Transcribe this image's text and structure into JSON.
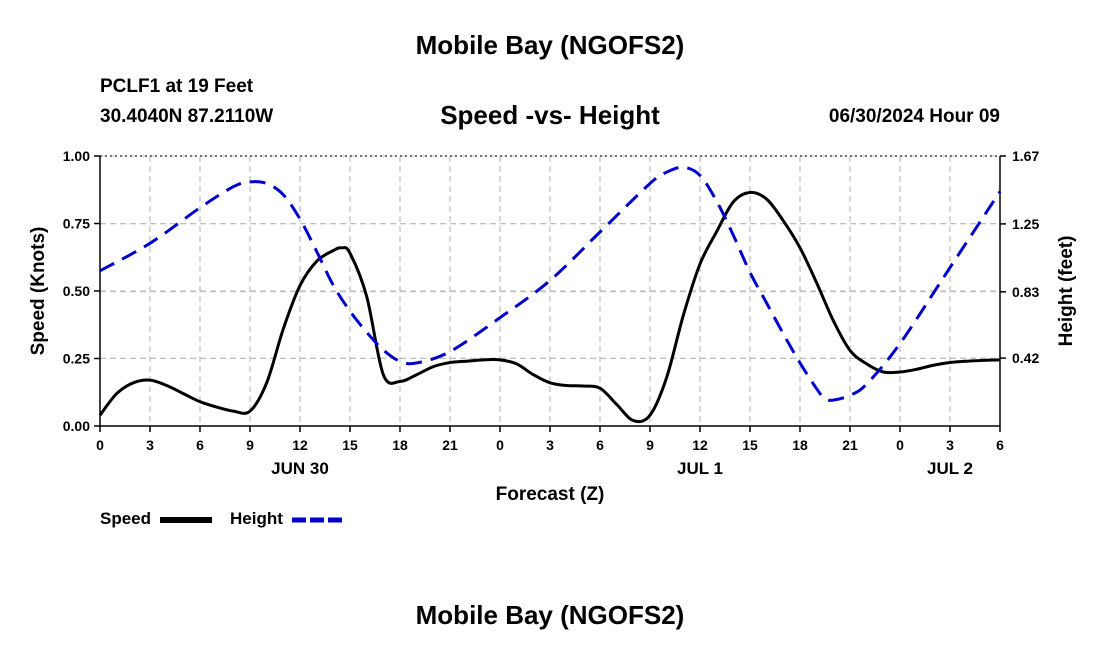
{
  "header": {
    "title": "Mobile Bay (NGOFS2)",
    "station": "PCLF1 at 19 Feet",
    "coordinates": "30.4040N  87.2110W",
    "subtitle": "Speed -vs- Height",
    "timestamp": "06/30/2024 Hour 09"
  },
  "footer": {
    "title": "Mobile Bay (NGOFS2)"
  },
  "legend": {
    "speed_label": "Speed",
    "height_label": "Height"
  },
  "chart_data": {
    "type": "line",
    "title": "Speed -vs- Height",
    "xlabel": "Forecast (Z)",
    "ylabel": "Speed (Knots)",
    "y2label": "Height (feet)",
    "x_unit": "hours since 2024-06-30 00Z",
    "xlim": [
      0,
      54
    ],
    "ylim": [
      0,
      1.0
    ],
    "y2lim": [
      0,
      1.67
    ],
    "x_ticks": [
      0,
      3,
      6,
      9,
      12,
      15,
      18,
      21,
      24,
      27,
      30,
      33,
      36,
      39,
      42,
      45,
      48,
      51,
      54
    ],
    "x_tick_labels": [
      "0",
      "3",
      "6",
      "9",
      "12",
      "15",
      "18",
      "21",
      "0",
      "3",
      "6",
      "9",
      "12",
      "15",
      "18",
      "21",
      "0",
      "3",
      "6"
    ],
    "date_labels": [
      {
        "x": 12,
        "label": "JUN 30"
      },
      {
        "x": 36,
        "label": "JUL 1"
      },
      {
        "x": 51,
        "label": "JUL 2"
      }
    ],
    "y_ticks": [
      0.0,
      0.25,
      0.5,
      0.75,
      1.0
    ],
    "y_tick_labels": [
      "0.00",
      "0.25",
      "0.50",
      "0.75",
      "1.00"
    ],
    "y2_ticks": [
      0.42,
      0.83,
      1.25,
      1.67
    ],
    "y2_tick_labels": [
      "0.42",
      "0.83",
      "1.25",
      "1.67"
    ],
    "grid": true,
    "series": [
      {
        "name": "Speed",
        "axis": "left",
        "color": "#000000",
        "style": "solid",
        "x": [
          0,
          1,
          2,
          3,
          4,
          5,
          6,
          7,
          8,
          9,
          10,
          11,
          12,
          13,
          14,
          14.5,
          15,
          16,
          17,
          18,
          19,
          20,
          21,
          22,
          23,
          24,
          25,
          26,
          27,
          28,
          29,
          30,
          31,
          32,
          33,
          34,
          35,
          36,
          37,
          38,
          39,
          40,
          41,
          42,
          43,
          44,
          45,
          46,
          47,
          48,
          49,
          50,
          51,
          52,
          53,
          54
        ],
        "values": [
          0.04,
          0.12,
          0.16,
          0.17,
          0.15,
          0.12,
          0.09,
          0.07,
          0.055,
          0.055,
          0.16,
          0.36,
          0.52,
          0.61,
          0.65,
          0.66,
          0.64,
          0.48,
          0.19,
          0.165,
          0.19,
          0.22,
          0.235,
          0.24,
          0.245,
          0.245,
          0.23,
          0.19,
          0.16,
          0.15,
          0.148,
          0.14,
          0.08,
          0.02,
          0.04,
          0.18,
          0.41,
          0.6,
          0.72,
          0.83,
          0.865,
          0.84,
          0.76,
          0.66,
          0.53,
          0.39,
          0.28,
          0.23,
          0.2,
          0.2,
          0.21,
          0.225,
          0.235,
          0.24,
          0.243,
          0.245
        ]
      },
      {
        "name": "Height",
        "axis": "right",
        "color": "#0000cc",
        "style": "dashed",
        "x": [
          0,
          3,
          6,
          8,
          9,
          10,
          11,
          12,
          13,
          14,
          15,
          16,
          17,
          18,
          19,
          21,
          24,
          27,
          30,
          33,
          34,
          35,
          36,
          37,
          38,
          39,
          40,
          41,
          42,
          43,
          43.5,
          44,
          45,
          46,
          48,
          51,
          54
        ],
        "values": [
          0.96,
          1.13,
          1.35,
          1.48,
          1.51,
          1.5,
          1.43,
          1.28,
          1.08,
          0.87,
          0.71,
          0.58,
          0.47,
          0.4,
          0.39,
          0.46,
          0.67,
          0.9,
          1.2,
          1.5,
          1.57,
          1.6,
          1.55,
          1.39,
          1.18,
          0.95,
          0.76,
          0.57,
          0.39,
          0.23,
          0.17,
          0.16,
          0.19,
          0.26,
          0.51,
          0.98,
          1.45
        ]
      }
    ]
  }
}
